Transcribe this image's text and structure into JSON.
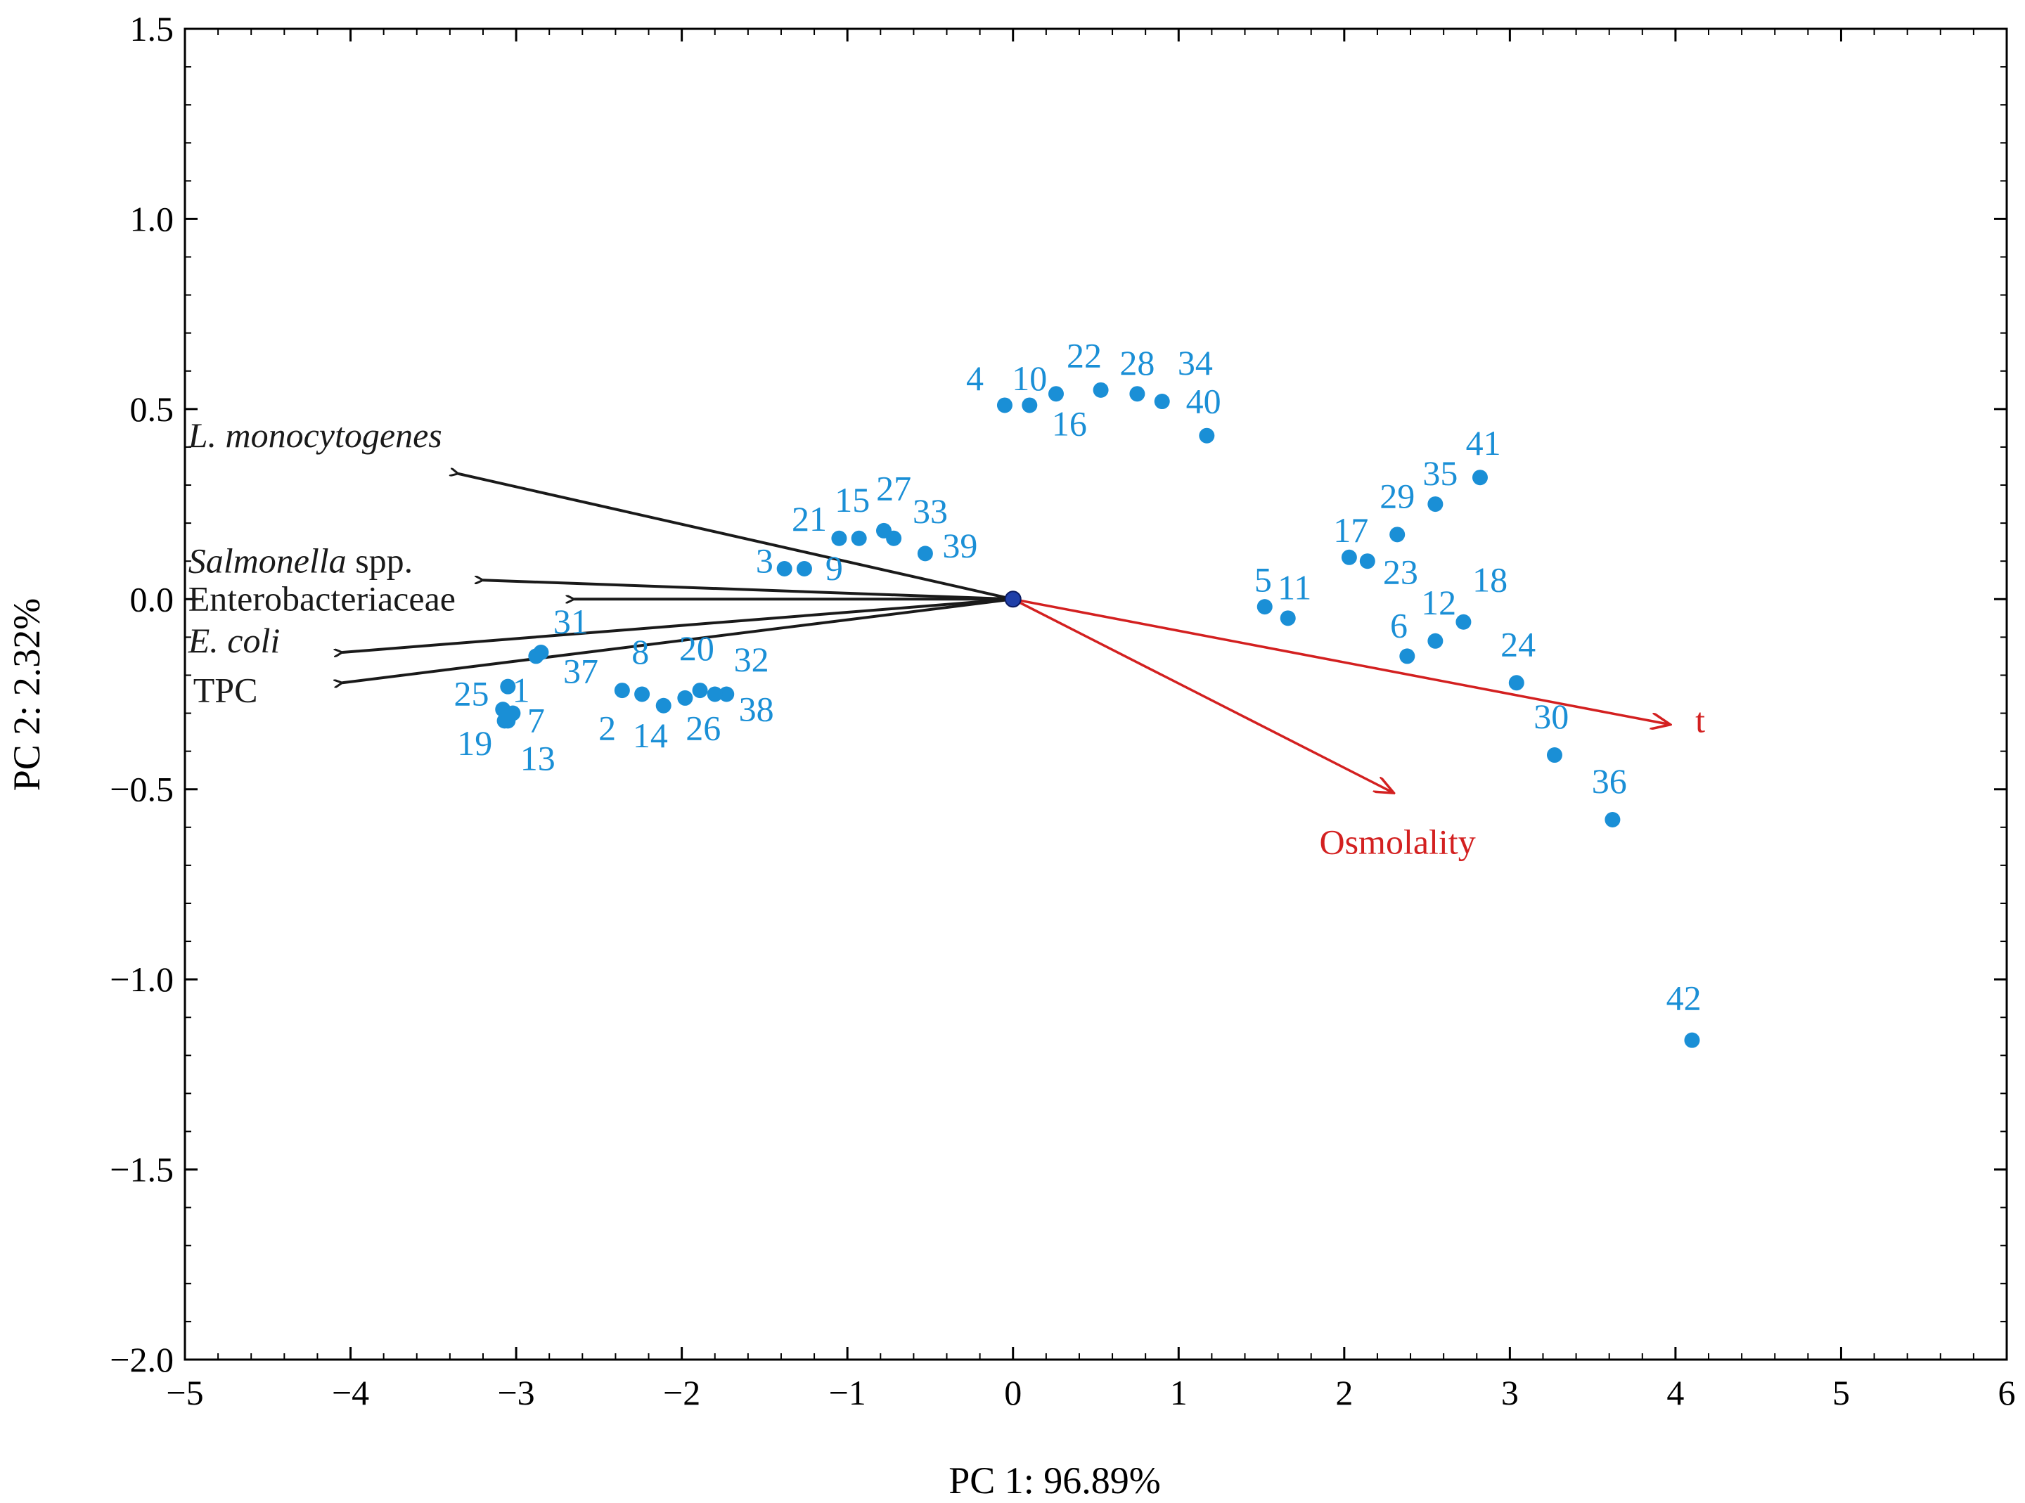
{
  "chart_data": {
    "type": "scatter",
    "subtype": "pca-biplot",
    "title": "",
    "xlabel": "PC 1: 96.89%",
    "ylabel": "PC 2: 2.32%",
    "xlim": [
      -5,
      6
    ],
    "ylim": [
      -2.0,
      1.5
    ],
    "x_ticks": [
      {
        "value": -5,
        "label": "−5"
      },
      {
        "value": -4,
        "label": "−4"
      },
      {
        "value": -3,
        "label": "−3"
      },
      {
        "value": -2,
        "label": "−2"
      },
      {
        "value": -1,
        "label": "−1"
      },
      {
        "value": 0,
        "label": "0"
      },
      {
        "value": 1,
        "label": "1"
      },
      {
        "value": 2,
        "label": "2"
      },
      {
        "value": 3,
        "label": "3"
      },
      {
        "value": 4,
        "label": "4"
      },
      {
        "value": 5,
        "label": "5"
      },
      {
        "value": 6,
        "label": "6"
      }
    ],
    "y_ticks": [
      {
        "value": 1.5,
        "label": "1.5"
      },
      {
        "value": 1.0,
        "label": "1.0"
      },
      {
        "value": 0.5,
        "label": "0.5"
      },
      {
        "value": 0.0,
        "label": "0.0"
      },
      {
        "value": -0.5,
        "label": "−0.5"
      },
      {
        "value": -1.0,
        "label": "−1.0"
      },
      {
        "value": -1.5,
        "label": "−1.5"
      },
      {
        "value": -2.0,
        "label": "−2.0"
      }
    ],
    "grid": false,
    "colors": {
      "points": "#1a8fd6",
      "loadings_black": "#1a1a1a",
      "loadings_red": "#d32020",
      "origin": "#1f3fa8"
    },
    "points": [
      {
        "label": "1",
        "x": -3.05,
        "y": -0.23,
        "lx": -2.97,
        "ly": -0.27
      },
      {
        "label": "2",
        "x": -2.36,
        "y": -0.24,
        "lx": -2.45,
        "ly": -0.37
      },
      {
        "label": "3",
        "x": -1.38,
        "y": 0.08,
        "lx": -1.5,
        "ly": 0.07
      },
      {
        "label": "4",
        "x": -0.05,
        "y": 0.51,
        "lx": -0.23,
        "ly": 0.55
      },
      {
        "label": "5",
        "x": 1.52,
        "y": -0.02,
        "lx": 1.51,
        "ly": 0.02
      },
      {
        "label": "6",
        "x": 2.38,
        "y": -0.15,
        "lx": 2.33,
        "ly": -0.1
      },
      {
        "label": "7",
        "x": -3.02,
        "y": -0.3,
        "lx": -2.88,
        "ly": -0.35
      },
      {
        "label": "8",
        "x": -2.24,
        "y": -0.25,
        "lx": -2.25,
        "ly": -0.17
      },
      {
        "label": "9",
        "x": -1.26,
        "y": 0.08,
        "lx": -1.08,
        "ly": 0.05
      },
      {
        "label": "10",
        "x": 0.1,
        "y": 0.51,
        "lx": 0.1,
        "ly": 0.55
      },
      {
        "label": "11",
        "x": 1.66,
        "y": -0.05,
        "lx": 1.7,
        "ly": 0.0
      },
      {
        "label": "12",
        "x": 2.55,
        "y": -0.11,
        "lx": 2.57,
        "ly": -0.04
      },
      {
        "label": "13",
        "x": -3.05,
        "y": -0.32,
        "lx": -2.87,
        "ly": -0.45
      },
      {
        "label": "14",
        "x": -2.11,
        "y": -0.28,
        "lx": -2.19,
        "ly": -0.39
      },
      {
        "label": "15",
        "x": -0.93,
        "y": 0.16,
        "lx": -0.97,
        "ly": 0.23
      },
      {
        "label": "16",
        "x": 0.26,
        "y": 0.54,
        "lx": 0.34,
        "ly": 0.43
      },
      {
        "label": "17",
        "x": 2.03,
        "y": 0.11,
        "lx": 2.04,
        "ly": 0.15
      },
      {
        "label": "18",
        "x": 2.72,
        "y": -0.06,
        "lx": 2.88,
        "ly": 0.02
      },
      {
        "label": "19",
        "x": -3.07,
        "y": -0.32,
        "lx": -3.25,
        "ly": -0.41
      },
      {
        "label": "20",
        "x": -1.89,
        "y": -0.24,
        "lx": -1.91,
        "ly": -0.16
      },
      {
        "label": "21",
        "x": -1.05,
        "y": 0.16,
        "lx": -1.23,
        "ly": 0.18
      },
      {
        "label": "22",
        "x": 0.53,
        "y": 0.55,
        "lx": 0.43,
        "ly": 0.61
      },
      {
        "label": "23",
        "x": 2.14,
        "y": 0.1,
        "lx": 2.34,
        "ly": 0.04
      },
      {
        "label": "24",
        "x": 3.04,
        "y": -0.22,
        "lx": 3.05,
        "ly": -0.15
      },
      {
        "label": "25",
        "x": -3.08,
        "y": -0.29,
        "lx": -3.27,
        "ly": -0.28
      },
      {
        "label": "26",
        "x": -1.98,
        "y": -0.26,
        "lx": -1.87,
        "ly": -0.37
      },
      {
        "label": "27",
        "x": -0.78,
        "y": 0.18,
        "lx": -0.72,
        "ly": 0.26
      },
      {
        "label": "28",
        "x": 0.75,
        "y": 0.54,
        "lx": 0.75,
        "ly": 0.59
      },
      {
        "label": "29",
        "x": 2.32,
        "y": 0.17,
        "lx": 2.32,
        "ly": 0.24
      },
      {
        "label": "30",
        "x": 3.27,
        "y": -0.41,
        "lx": 3.25,
        "ly": -0.34
      },
      {
        "label": "31",
        "x": -2.85,
        "y": -0.14,
        "lx": -2.67,
        "ly": -0.09
      },
      {
        "label": "32",
        "x": -1.73,
        "y": -0.25,
        "lx": -1.58,
        "ly": -0.19
      },
      {
        "label": "33",
        "x": -0.72,
        "y": 0.16,
        "lx": -0.5,
        "ly": 0.2
      },
      {
        "label": "34",
        "x": 0.9,
        "y": 0.52,
        "lx": 1.1,
        "ly": 0.59
      },
      {
        "label": "35",
        "x": 2.55,
        "y": 0.25,
        "lx": 2.58,
        "ly": 0.3
      },
      {
        "label": "36",
        "x": 3.62,
        "y": -0.58,
        "lx": 3.6,
        "ly": -0.51
      },
      {
        "label": "37",
        "x": -2.88,
        "y": -0.15,
        "lx": -2.61,
        "ly": -0.22
      },
      {
        "label": "38",
        "x": -1.8,
        "y": -0.25,
        "lx": -1.55,
        "ly": -0.32
      },
      {
        "label": "39",
        "x": -0.53,
        "y": 0.12,
        "lx": -0.32,
        "ly": 0.11
      },
      {
        "label": "40",
        "x": 1.17,
        "y": 0.43,
        "lx": 1.15,
        "ly": 0.49
      },
      {
        "label": "41",
        "x": 2.82,
        "y": 0.32,
        "lx": 2.84,
        "ly": 0.38
      },
      {
        "label": "42",
        "x": 4.1,
        "y": -1.16,
        "lx": 4.05,
        "ly": -1.08
      }
    ],
    "origin": {
      "x": 0.0,
      "y": 0.0
    },
    "loadings": [
      {
        "name": "L. monocytogenes",
        "italic": "L. monocytogenes",
        "rest": "",
        "x": -3.35,
        "y": 0.33,
        "lx": -4.98,
        "ly": 0.4,
        "color": "#1a1a1a"
      },
      {
        "name": "Salmonella spp.",
        "italic": "Salmonella",
        "rest": " spp.",
        "x": -3.2,
        "y": 0.05,
        "lx": -4.98,
        "ly": 0.07,
        "color": "#1a1a1a"
      },
      {
        "name": "Enterobacteriaceae",
        "italic": "",
        "rest": "Enterobacteriaceae",
        "x": -2.65,
        "y": 0.0,
        "lx": -4.98,
        "ly": -0.03,
        "color": "#1a1a1a"
      },
      {
        "name": "E. coli",
        "italic": "E. coli",
        "rest": "",
        "x": -4.05,
        "y": -0.14,
        "lx": -4.98,
        "ly": -0.14,
        "color": "#1a1a1a"
      },
      {
        "name": "TPC",
        "italic": "",
        "rest": "TPC",
        "x": -4.05,
        "y": -0.22,
        "lx": -4.95,
        "ly": -0.27,
        "color": "#1a1a1a"
      },
      {
        "name": "t",
        "italic": "",
        "rest": "t",
        "x": 3.97,
        "y": -0.33,
        "lx": 4.12,
        "ly": -0.35,
        "color": "#d32020"
      },
      {
        "name": "Osmolality",
        "italic": "",
        "rest": "Osmolality",
        "x": 2.3,
        "y": -0.51,
        "lx": 1.85,
        "ly": -0.67,
        "color": "#d32020"
      }
    ]
  }
}
